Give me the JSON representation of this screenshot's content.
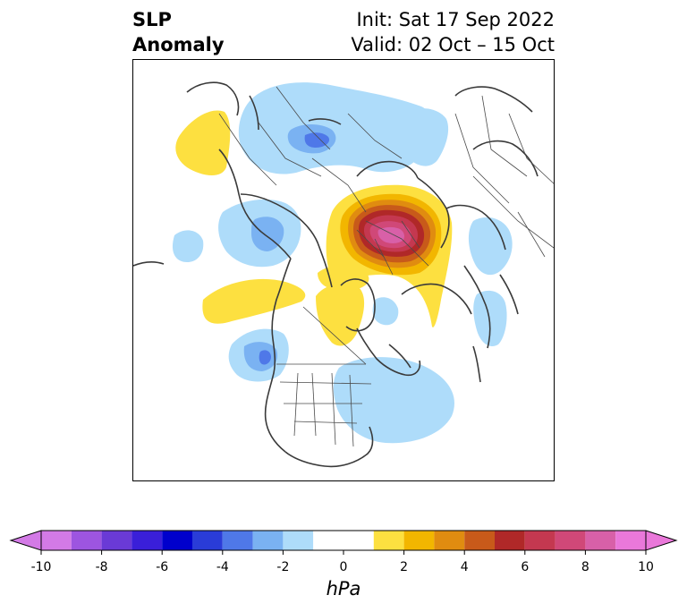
{
  "title": {
    "left_line1": "SLP",
    "left_line2": "Anomaly",
    "right_line1": "Init: Sat 17 Sep 2022",
    "right_line2": "Valid: 02 Oct – 15 Oct"
  },
  "colorbar": {
    "unit": "hPa",
    "range": [
      -10,
      10
    ],
    "bin_width": 1,
    "extend": "both",
    "neutral_bins": [
      -1,
      1
    ],
    "neutral_color": "#ffffff",
    "neg_colors": [
      "#d37ae6",
      "#9d55e0",
      "#6a3ad6",
      "#3a1fd9",
      "#0000cc",
      "#2a3cd8",
      "#4f78e8",
      "#7ab2f2",
      "#aedcfa"
    ],
    "pos_colors": [
      "#fde040",
      "#f2b600",
      "#e08c10",
      "#c85a1a",
      "#b02828",
      "#c43850",
      "#d04878",
      "#d860a8",
      "#ea78da"
    ],
    "ticks": [
      {
        "value": -10,
        "label": "-10"
      },
      {
        "value": -8,
        "label": "-8"
      },
      {
        "value": -6,
        "label": "-6"
      },
      {
        "value": -4,
        "label": "-4"
      },
      {
        "value": -2,
        "label": "-2"
      },
      {
        "value": 0,
        "label": "0"
      },
      {
        "value": 2,
        "label": "2"
      },
      {
        "value": 4,
        "label": "4"
      },
      {
        "value": 6,
        "label": "6"
      },
      {
        "value": 8,
        "label": "8"
      },
      {
        "value": 10,
        "label": "10"
      }
    ]
  },
  "map": {
    "projection": "north-polar-stereographic",
    "field": "sea-level pressure anomaly",
    "features": [
      {
        "name": "high-over-arctic",
        "sign": "positive",
        "peak_hpa": 9
      },
      {
        "name": "high-over-scandinavia",
        "sign": "positive",
        "peak_hpa": 2
      },
      {
        "name": "high-over-gulf-of-alaska",
        "sign": "positive",
        "peak_hpa": 2
      },
      {
        "name": "low-over-eastern-siberia",
        "sign": "negative",
        "peak_hpa": -4
      },
      {
        "name": "low-over-northeast-pacific",
        "sign": "negative",
        "peak_hpa": -5
      },
      {
        "name": "low-over-north-atlantic",
        "sign": "negative",
        "peak_hpa": -2
      }
    ]
  }
}
